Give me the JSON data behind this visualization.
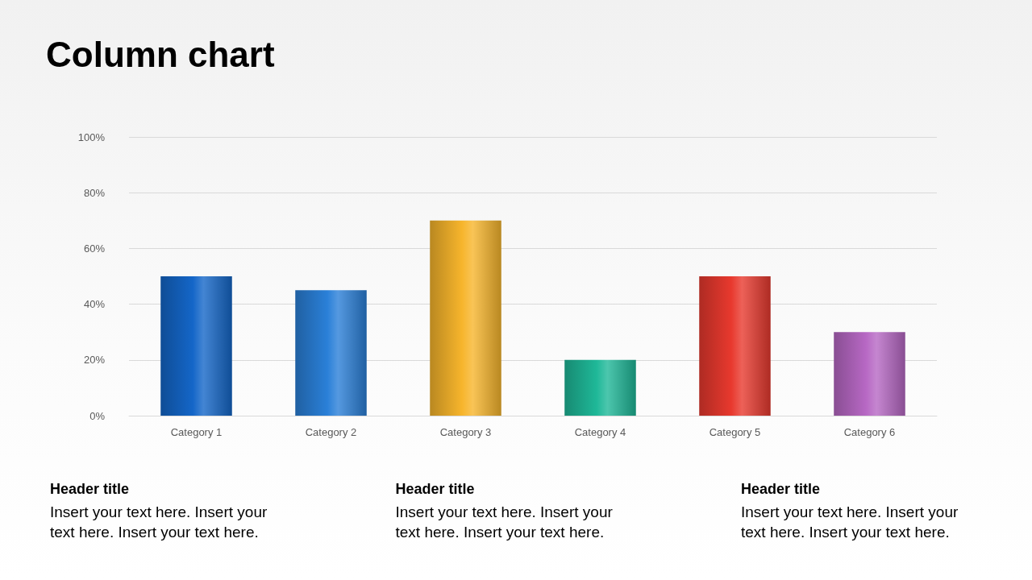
{
  "chart_data": {
    "type": "bar",
    "title": "Column chart",
    "categories": [
      "Category 1",
      "Category 2",
      "Category 3",
      "Category 4",
      "Category 5",
      "Category 6"
    ],
    "values": [
      50,
      45,
      70,
      20,
      50,
      30
    ],
    "colors": [
      "#1466c8",
      "#2a80d8",
      "#f7b52c",
      "#1fb898",
      "#e8392e",
      "#b768c4"
    ],
    "ylim": [
      0,
      100
    ],
    "yticks": [
      {
        "value": 0,
        "label": "0%"
      },
      {
        "value": 20,
        "label": "20%"
      },
      {
        "value": 40,
        "label": "40%"
      },
      {
        "value": 60,
        "label": "60%"
      },
      {
        "value": 80,
        "label": "80%"
      },
      {
        "value": 100,
        "label": "100%"
      }
    ],
    "grid": "y",
    "annotations": [
      "Header title",
      "Insert your text here. Insert your text here. Insert your text here.",
      "Header title",
      "Insert your text here. Insert your text here. Insert your text here.",
      "Header title",
      "Insert your text here. Insert your text here. Insert your text here."
    ]
  }
}
